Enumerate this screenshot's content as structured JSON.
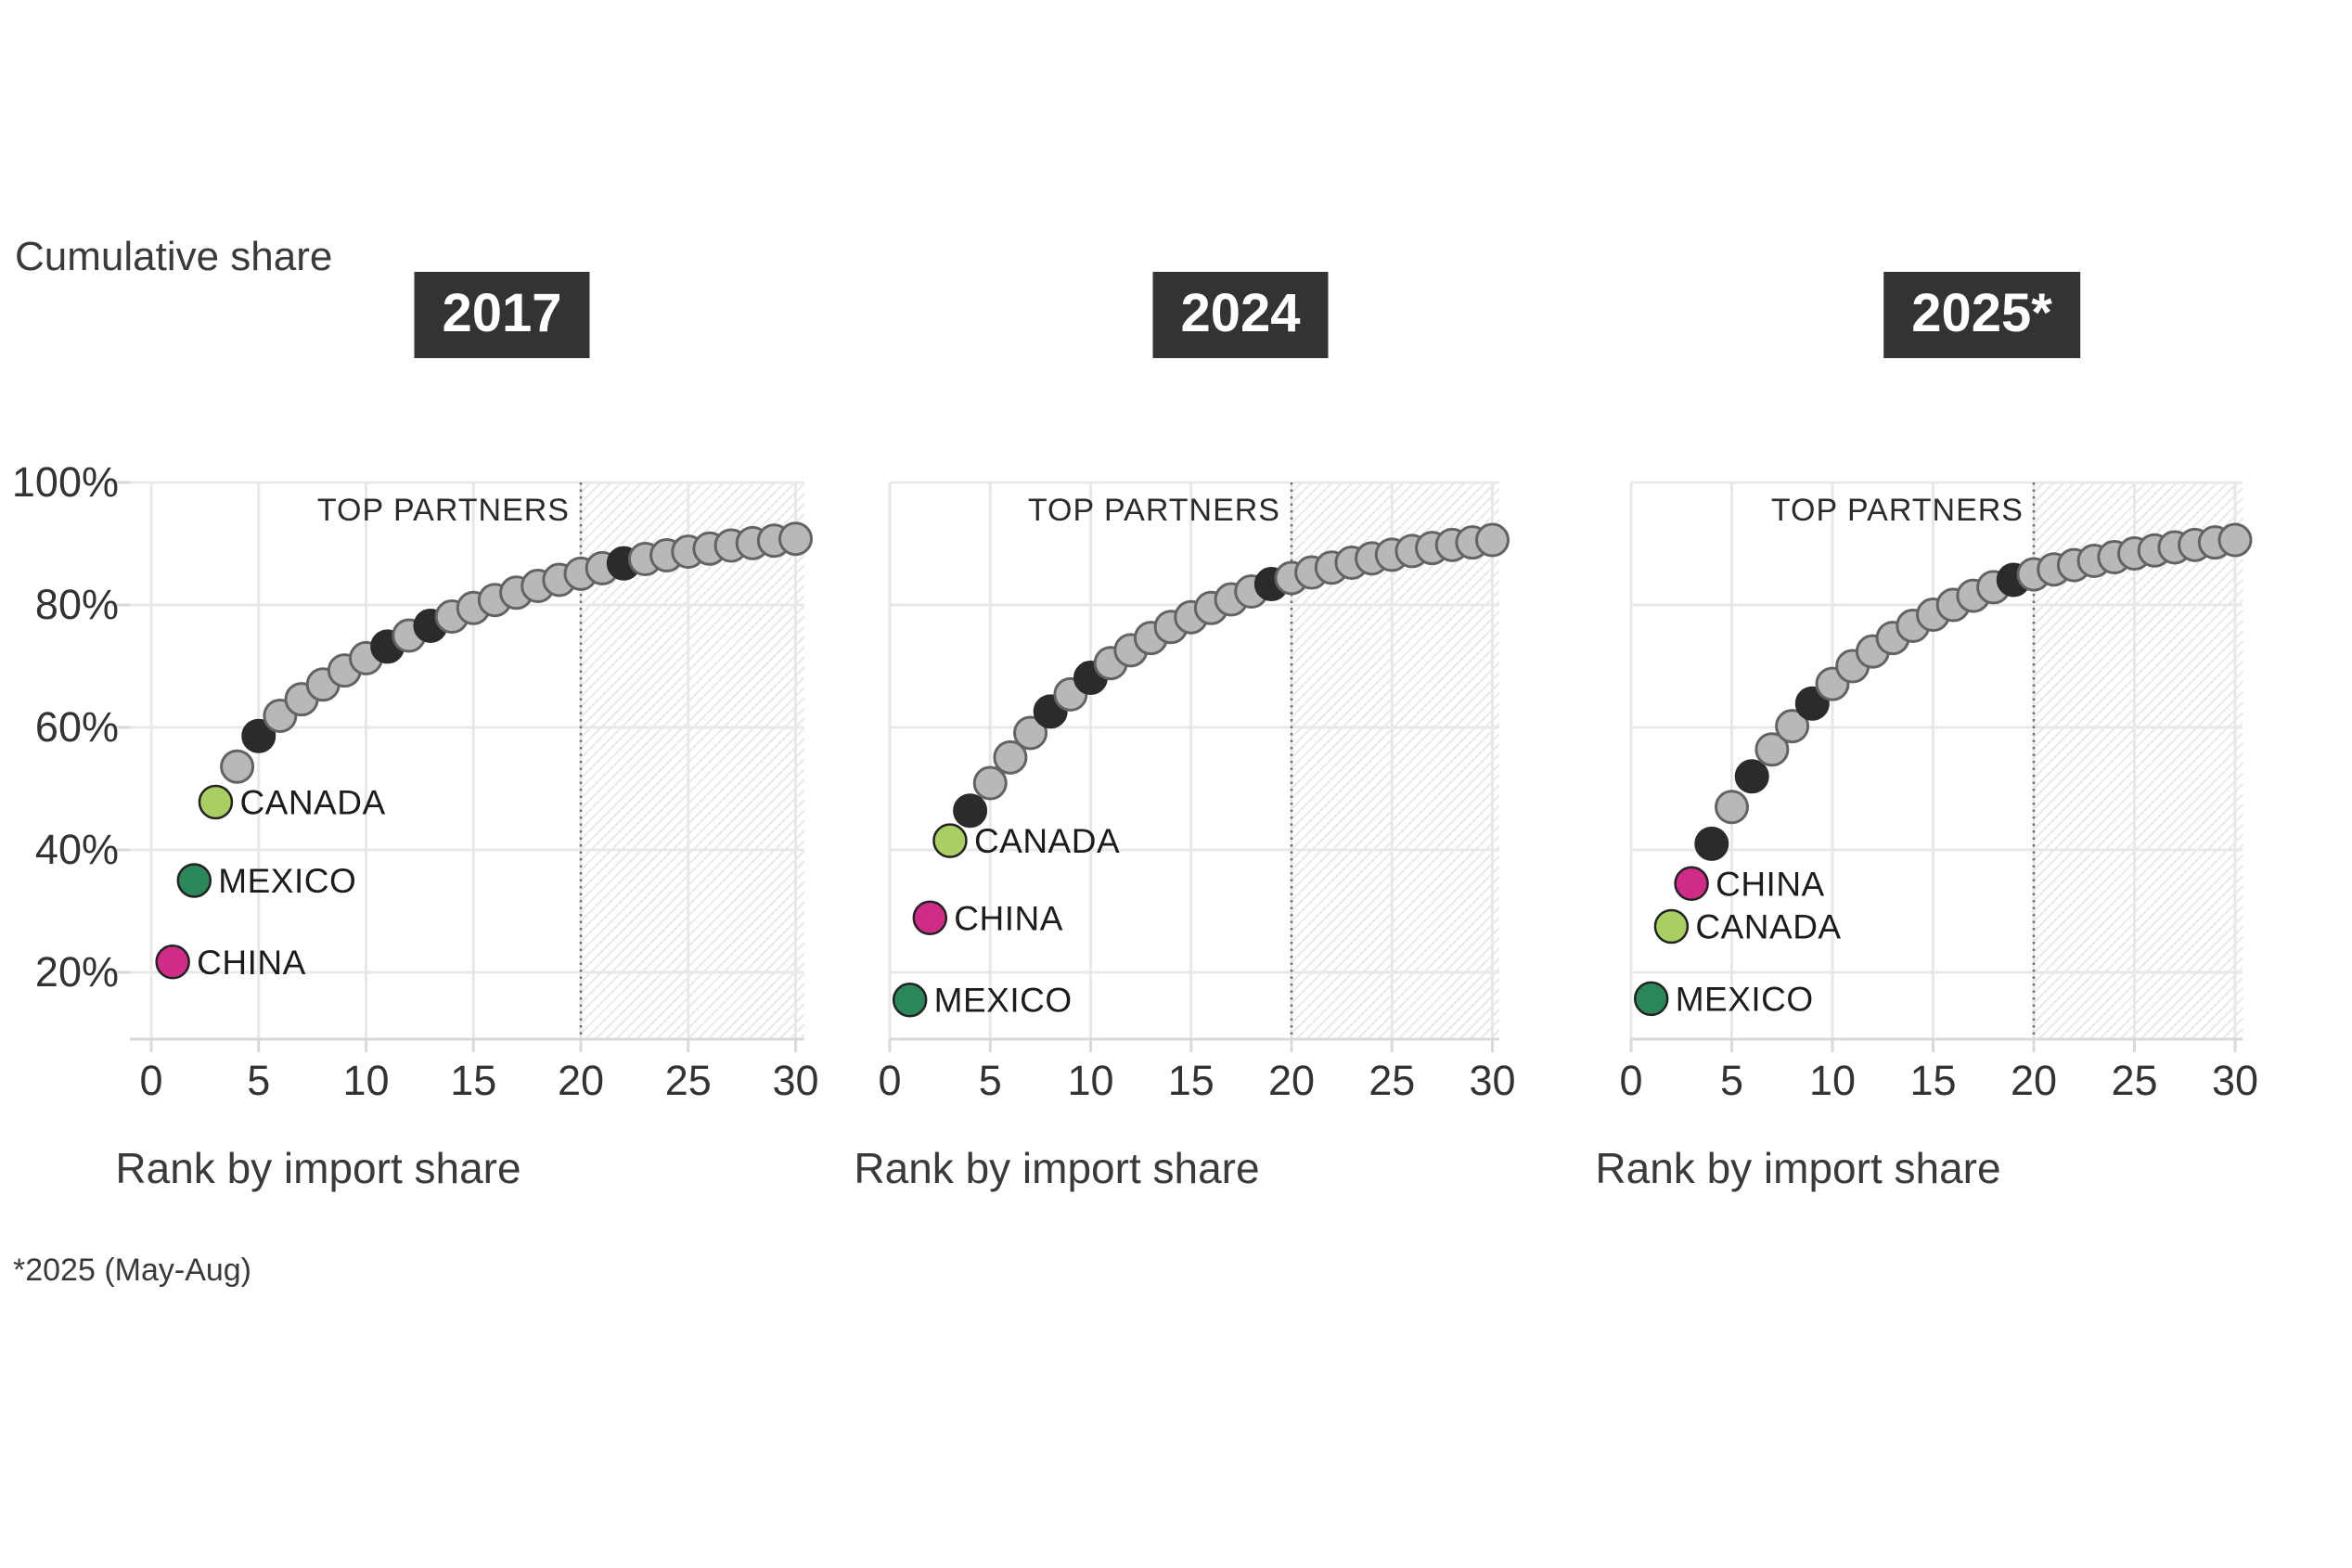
{
  "labels": {
    "y_axis_title": "Cumulative share",
    "footnote": "*2025 (May-Aug)"
  },
  "palette": {
    "gray_fill": "#b8b8b8",
    "gray_stroke": "#636363",
    "black_fill": "#2b2b2b",
    "black_stroke": "#2b2b2b",
    "china_fill": "#d02b87",
    "canada_fill": "#a9cf63",
    "mexico_fill": "#2b8659",
    "highlight_stroke": "#222222",
    "grid": "#e8e8e8",
    "axis": "#d9d9d9",
    "hatch": "#ebe8e8",
    "dashed_line": "#707070",
    "tick_text": "#333333",
    "country_text": "#1c1c1c",
    "title_bg": "#333333",
    "title_fg": "#ffffff"
  },
  "y_axis": {
    "ticks": [
      {
        "label": "100%",
        "value": 100
      },
      {
        "label": "80%",
        "value": 80
      },
      {
        "label": "60%",
        "value": 60
      },
      {
        "label": "40%",
        "value": 40
      },
      {
        "label": "20%",
        "value": 20
      }
    ]
  },
  "chart_data": [
    {
      "type": "scatter",
      "title": "2017",
      "top_partners_label": "TOP PARTNERS",
      "xlabel": "Rank by import share",
      "ylabel": "Cumulative share",
      "x_ticks": [
        0,
        5,
        10,
        15,
        20,
        25,
        30
      ],
      "xlim": [
        0,
        30
      ],
      "ylim_pct": [
        9,
        100
      ],
      "top_partner_cutoff_rank": 20,
      "points": [
        {
          "r": 1,
          "v": 21.7,
          "c": "china",
          "label": "CHINA"
        },
        {
          "r": 2,
          "v": 35.0,
          "c": "mexico",
          "label": "MEXICO"
        },
        {
          "r": 3,
          "v": 47.8,
          "c": "canada",
          "label": "CANADA"
        },
        {
          "r": 4,
          "v": 53.6,
          "c": "gray"
        },
        {
          "r": 5,
          "v": 58.6,
          "c": "black"
        },
        {
          "r": 6,
          "v": 61.9,
          "c": "gray"
        },
        {
          "r": 7,
          "v": 64.6,
          "c": "gray"
        },
        {
          "r": 8,
          "v": 67.0,
          "c": "gray"
        },
        {
          "r": 9,
          "v": 69.3,
          "c": "gray"
        },
        {
          "r": 10,
          "v": 71.3,
          "c": "gray"
        },
        {
          "r": 11,
          "v": 73.2,
          "c": "black"
        },
        {
          "r": 12,
          "v": 75.0,
          "c": "gray"
        },
        {
          "r": 13,
          "v": 76.6,
          "c": "black"
        },
        {
          "r": 14,
          "v": 78.1,
          "c": "gray"
        },
        {
          "r": 15,
          "v": 79.5,
          "c": "gray"
        },
        {
          "r": 16,
          "v": 80.8,
          "c": "gray"
        },
        {
          "r": 17,
          "v": 82.0,
          "c": "gray"
        },
        {
          "r": 18,
          "v": 83.1,
          "c": "gray"
        },
        {
          "r": 19,
          "v": 84.1,
          "c": "gray"
        },
        {
          "r": 20,
          "v": 85.1,
          "c": "gray"
        },
        {
          "r": 21,
          "v": 86.0,
          "c": "gray"
        },
        {
          "r": 22,
          "v": 86.8,
          "c": "black"
        },
        {
          "r": 23,
          "v": 87.5,
          "c": "gray"
        },
        {
          "r": 24,
          "v": 88.1,
          "c": "gray"
        },
        {
          "r": 25,
          "v": 88.7,
          "c": "gray"
        },
        {
          "r": 26,
          "v": 89.2,
          "c": "gray"
        },
        {
          "r": 27,
          "v": 89.7,
          "c": "gray"
        },
        {
          "r": 28,
          "v": 90.1,
          "c": "gray"
        },
        {
          "r": 29,
          "v": 90.5,
          "c": "gray"
        },
        {
          "r": 30,
          "v": 90.8,
          "c": "gray"
        }
      ]
    },
    {
      "type": "scatter",
      "title": "2024",
      "top_partners_label": "TOP PARTNERS",
      "xlabel": "Rank by import share",
      "ylabel": "Cumulative share",
      "x_ticks": [
        0,
        5,
        10,
        15,
        20,
        25,
        30
      ],
      "xlim": [
        0,
        30
      ],
      "ylim_pct": [
        9,
        100
      ],
      "top_partner_cutoff_rank": 20,
      "points": [
        {
          "r": 1,
          "v": 15.5,
          "c": "mexico",
          "label": "MEXICO"
        },
        {
          "r": 2,
          "v": 28.9,
          "c": "china",
          "label": "CHINA"
        },
        {
          "r": 3,
          "v": 41.5,
          "c": "canada",
          "label": "CANADA"
        },
        {
          "r": 4,
          "v": 46.4,
          "c": "black"
        },
        {
          "r": 5,
          "v": 50.9,
          "c": "gray"
        },
        {
          "r": 6,
          "v": 55.1,
          "c": "gray"
        },
        {
          "r": 7,
          "v": 59.1,
          "c": "gray"
        },
        {
          "r": 8,
          "v": 62.6,
          "c": "black"
        },
        {
          "r": 9,
          "v": 65.4,
          "c": "gray"
        },
        {
          "r": 10,
          "v": 68.1,
          "c": "black"
        },
        {
          "r": 11,
          "v": 70.5,
          "c": "gray"
        },
        {
          "r": 12,
          "v": 72.6,
          "c": "gray"
        },
        {
          "r": 13,
          "v": 74.6,
          "c": "gray"
        },
        {
          "r": 14,
          "v": 76.4,
          "c": "gray"
        },
        {
          "r": 15,
          "v": 78.0,
          "c": "gray"
        },
        {
          "r": 16,
          "v": 79.5,
          "c": "gray"
        },
        {
          "r": 17,
          "v": 80.9,
          "c": "gray"
        },
        {
          "r": 18,
          "v": 82.2,
          "c": "gray"
        },
        {
          "r": 19,
          "v": 83.4,
          "c": "black"
        },
        {
          "r": 20,
          "v": 84.4,
          "c": "gray"
        },
        {
          "r": 21,
          "v": 85.3,
          "c": "gray"
        },
        {
          "r": 22,
          "v": 86.1,
          "c": "gray"
        },
        {
          "r": 23,
          "v": 86.9,
          "c": "gray"
        },
        {
          "r": 24,
          "v": 87.6,
          "c": "gray"
        },
        {
          "r": 25,
          "v": 88.2,
          "c": "gray"
        },
        {
          "r": 26,
          "v": 88.8,
          "c": "gray"
        },
        {
          "r": 27,
          "v": 89.3,
          "c": "gray"
        },
        {
          "r": 28,
          "v": 89.8,
          "c": "gray"
        },
        {
          "r": 29,
          "v": 90.2,
          "c": "gray"
        },
        {
          "r": 30,
          "v": 90.6,
          "c": "gray"
        }
      ]
    },
    {
      "type": "scatter",
      "title": "2025*",
      "top_partners_label": "TOP PARTNERS",
      "xlabel": "Rank by import share",
      "ylabel": "Cumulative share",
      "x_ticks": [
        0,
        5,
        10,
        15,
        20,
        25,
        30
      ],
      "xlim": [
        0,
        30
      ],
      "ylim_pct": [
        9,
        100
      ],
      "top_partner_cutoff_rank": 20,
      "points": [
        {
          "r": 1,
          "v": 15.7,
          "c": "mexico",
          "label": "MEXICO"
        },
        {
          "r": 2,
          "v": 27.5,
          "c": "canada",
          "label": "CANADA"
        },
        {
          "r": 3,
          "v": 34.5,
          "c": "china",
          "label": "CHINA"
        },
        {
          "r": 4,
          "v": 41.0,
          "c": "black"
        },
        {
          "r": 5,
          "v": 47.0,
          "c": "gray"
        },
        {
          "r": 6,
          "v": 52.0,
          "c": "black"
        },
        {
          "r": 7,
          "v": 56.4,
          "c": "gray"
        },
        {
          "r": 8,
          "v": 60.2,
          "c": "gray"
        },
        {
          "r": 9,
          "v": 63.9,
          "c": "black"
        },
        {
          "r": 10,
          "v": 67.1,
          "c": "gray"
        },
        {
          "r": 11,
          "v": 70.0,
          "c": "gray"
        },
        {
          "r": 12,
          "v": 72.4,
          "c": "gray"
        },
        {
          "r": 13,
          "v": 74.6,
          "c": "gray"
        },
        {
          "r": 14,
          "v": 76.6,
          "c": "gray"
        },
        {
          "r": 15,
          "v": 78.4,
          "c": "gray"
        },
        {
          "r": 16,
          "v": 80.0,
          "c": "gray"
        },
        {
          "r": 17,
          "v": 81.5,
          "c": "gray"
        },
        {
          "r": 18,
          "v": 82.9,
          "c": "gray"
        },
        {
          "r": 19,
          "v": 84.1,
          "c": "black"
        },
        {
          "r": 20,
          "v": 85.0,
          "c": "gray"
        },
        {
          "r": 21,
          "v": 85.8,
          "c": "gray"
        },
        {
          "r": 22,
          "v": 86.5,
          "c": "gray"
        },
        {
          "r": 23,
          "v": 87.2,
          "c": "gray"
        },
        {
          "r": 24,
          "v": 87.8,
          "c": "gray"
        },
        {
          "r": 25,
          "v": 88.4,
          "c": "gray"
        },
        {
          "r": 26,
          "v": 88.9,
          "c": "gray"
        },
        {
          "r": 27,
          "v": 89.4,
          "c": "gray"
        },
        {
          "r": 28,
          "v": 89.8,
          "c": "gray"
        },
        {
          "r": 29,
          "v": 90.2,
          "c": "gray"
        },
        {
          "r": 30,
          "v": 90.6,
          "c": "gray"
        }
      ]
    }
  ]
}
